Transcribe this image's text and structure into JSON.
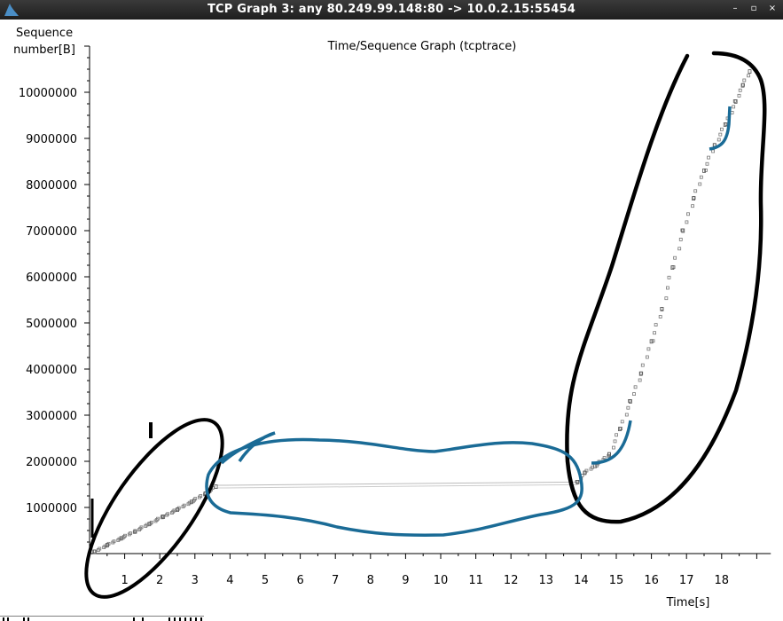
{
  "window": {
    "title": "TCP Graph 3: any 80.249.99.148:80 -> 10.0.2.15:55454",
    "controls": [
      "–",
      "▫",
      "×"
    ]
  },
  "chart_data": {
    "type": "scatter",
    "title": "Time/Sequence Graph (tcptrace)",
    "ylabel_line1": "Sequence",
    "ylabel_line2": "number[B]",
    "xlabel": "Time[s]",
    "xlim": [
      0,
      19.4
    ],
    "ylim": [
      0,
      11000000
    ],
    "x_ticks": [
      1,
      2,
      3,
      4,
      5,
      6,
      7,
      8,
      9,
      10,
      11,
      12,
      13,
      14,
      15,
      16,
      17,
      18
    ],
    "y_ticks": [
      1000000,
      2000000,
      3000000,
      4000000,
      5000000,
      6000000,
      7000000,
      8000000,
      9000000,
      10000000
    ],
    "series": [
      {
        "color": "#777777",
        "points": [
          [
            0.15,
            40000
          ],
          [
            0.5,
            180000
          ],
          [
            0.9,
            330000
          ],
          [
            1.3,
            480000
          ],
          [
            1.7,
            640000
          ],
          [
            2.1,
            800000
          ],
          [
            2.5,
            950000
          ],
          [
            2.9,
            1120000
          ],
          [
            3.3,
            1300000
          ],
          [
            3.6,
            1450000
          ],
          [
            13.9,
            1550000
          ],
          [
            14.1,
            1750000
          ],
          [
            14.4,
            1900000
          ],
          [
            14.8,
            2150000
          ],
          [
            15.1,
            2700000
          ],
          [
            15.4,
            3300000
          ],
          [
            15.7,
            3900000
          ],
          [
            16.0,
            4600000
          ],
          [
            16.3,
            5300000
          ],
          [
            16.6,
            6200000
          ],
          [
            16.9,
            7000000
          ],
          [
            17.2,
            7700000
          ],
          [
            17.5,
            8300000
          ],
          [
            17.8,
            8850000
          ],
          [
            18.1,
            9300000
          ],
          [
            18.4,
            9800000
          ],
          [
            18.6,
            10150000
          ],
          [
            18.8,
            10450000
          ]
        ],
        "flat_segment": {
          "x": [
            3.6,
            13.9
          ],
          "y": [
            1480000,
            1550000
          ]
        }
      }
    ],
    "annotations": [
      {
        "kind": "freehand-ellipse",
        "color": "#000000"
      },
      {
        "kind": "freehand-outline",
        "color": "#000000"
      },
      {
        "kind": "freehand-blob",
        "color": "#1a6b96"
      },
      {
        "kind": "freehand-stroke",
        "color": "#1a6b96"
      }
    ],
    "grid": false
  }
}
